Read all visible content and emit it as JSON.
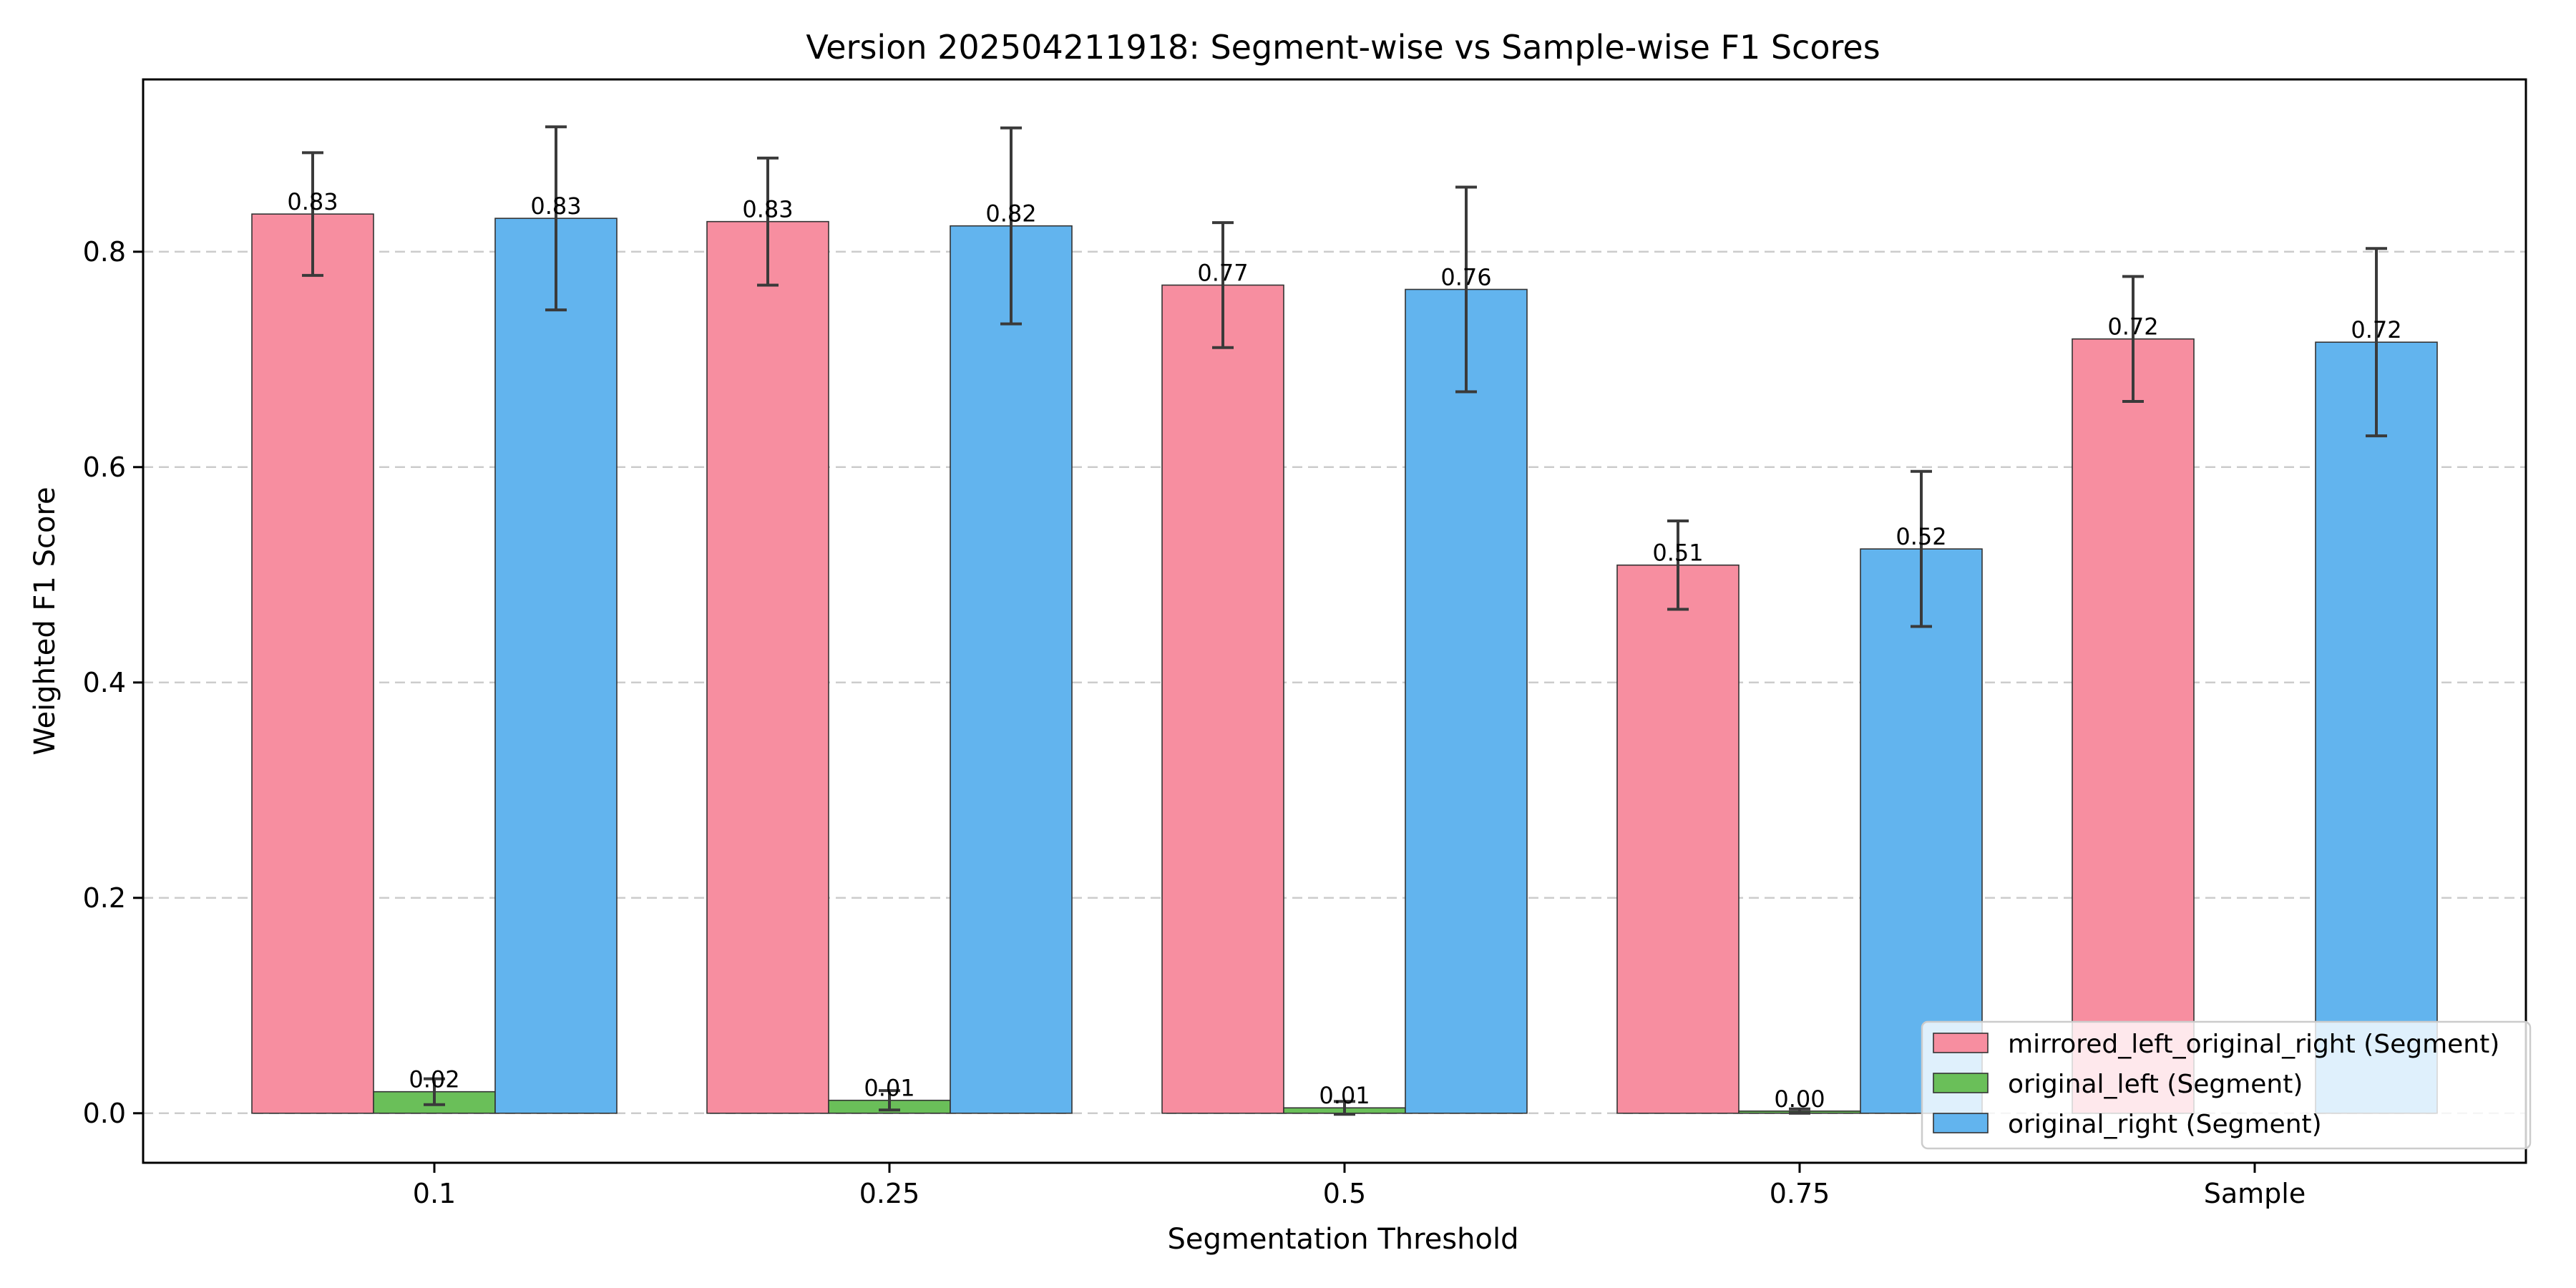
{
  "chart_data": {
    "type": "bar",
    "title": "Version 202504211918: Segment-wise vs Sample-wise F1 Scores",
    "xlabel": "Segmentation Threshold",
    "ylabel": "Weighted F1 Score",
    "categories": [
      "0.1",
      "0.25",
      "0.5",
      "0.75",
      "Sample"
    ],
    "ylim": [
      -0.046,
      0.96
    ],
    "yticks": [
      0.0,
      0.2,
      0.4,
      0.6,
      0.8
    ],
    "ytick_labels": [
      "0.0",
      "0.2",
      "0.4",
      "0.6",
      "0.8"
    ],
    "grid": "y-dashed",
    "legend_position": "lower right",
    "series": [
      {
        "name": "mirrored_left_original_right (Segment)",
        "color": "#f78ea0",
        "values": [
          0.835,
          0.828,
          0.769,
          0.509,
          0.719
        ],
        "errors": [
          0.057,
          0.059,
          0.058,
          0.041,
          0.058
        ],
        "labels": [
          "0.83",
          "0.83",
          "0.77",
          "0.51",
          "0.72"
        ]
      },
      {
        "name": "original_left (Segment)",
        "color": "#6abf59",
        "values": [
          0.02,
          0.012,
          0.005,
          0.002,
          null
        ],
        "errors": [
          0.012,
          0.009,
          0.006,
          0.002,
          null
        ],
        "labels": [
          "0.02",
          "0.01",
          "0.01",
          "0.00",
          ""
        ]
      },
      {
        "name": "original_right (Segment)",
        "color": "#62b4ee",
        "values": [
          0.831,
          0.824,
          0.765,
          0.524,
          0.716
        ],
        "errors": [
          0.085,
          0.091,
          0.095,
          0.072,
          0.087
        ],
        "labels": [
          "0.83",
          "0.82",
          "0.76",
          "0.52",
          "0.72"
        ]
      }
    ]
  }
}
